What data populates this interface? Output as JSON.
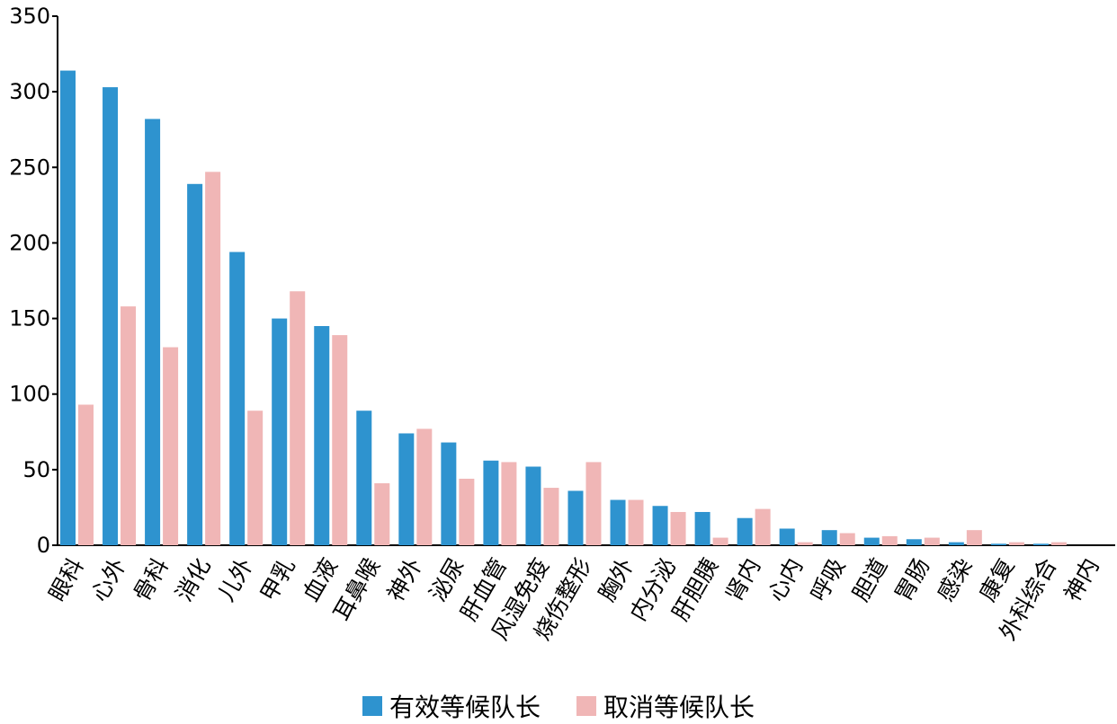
{
  "chart_data": {
    "type": "bar",
    "title": "",
    "xlabel": "",
    "ylabel": "",
    "ylim": [
      0,
      350
    ],
    "yticks": [
      0,
      50,
      100,
      150,
      200,
      250,
      300,
      350
    ],
    "grid": false,
    "legend_position": "bottom",
    "categories": [
      "眼科",
      "心外",
      "骨科",
      "消化",
      "儿外",
      "甲乳",
      "血液",
      "耳鼻喉",
      "神外",
      "泌尿",
      "肝血管",
      "风湿免疫",
      "烧伤整形",
      "胸外",
      "内分泌",
      "肝胆胰",
      "肾内",
      "心内",
      "呼吸",
      "胆道",
      "胃肠",
      "感染",
      "康复",
      "外科综合",
      "神内"
    ],
    "series": [
      {
        "name": "有效等候队长",
        "color": "#2e93cf",
        "values": [
          314,
          303,
          282,
          239,
          194,
          150,
          145,
          89,
          74,
          68,
          56,
          52,
          36,
          30,
          26,
          22,
          18,
          11,
          10,
          5,
          4,
          2,
          1,
          1,
          0
        ]
      },
      {
        "name": "取消等候队长",
        "color": "#f0b6b6",
        "values": [
          93,
          158,
          131,
          247,
          89,
          168,
          139,
          41,
          77,
          44,
          55,
          38,
          55,
          30,
          22,
          5,
          24,
          2,
          8,
          6,
          5,
          10,
          2,
          2,
          0
        ]
      }
    ]
  }
}
